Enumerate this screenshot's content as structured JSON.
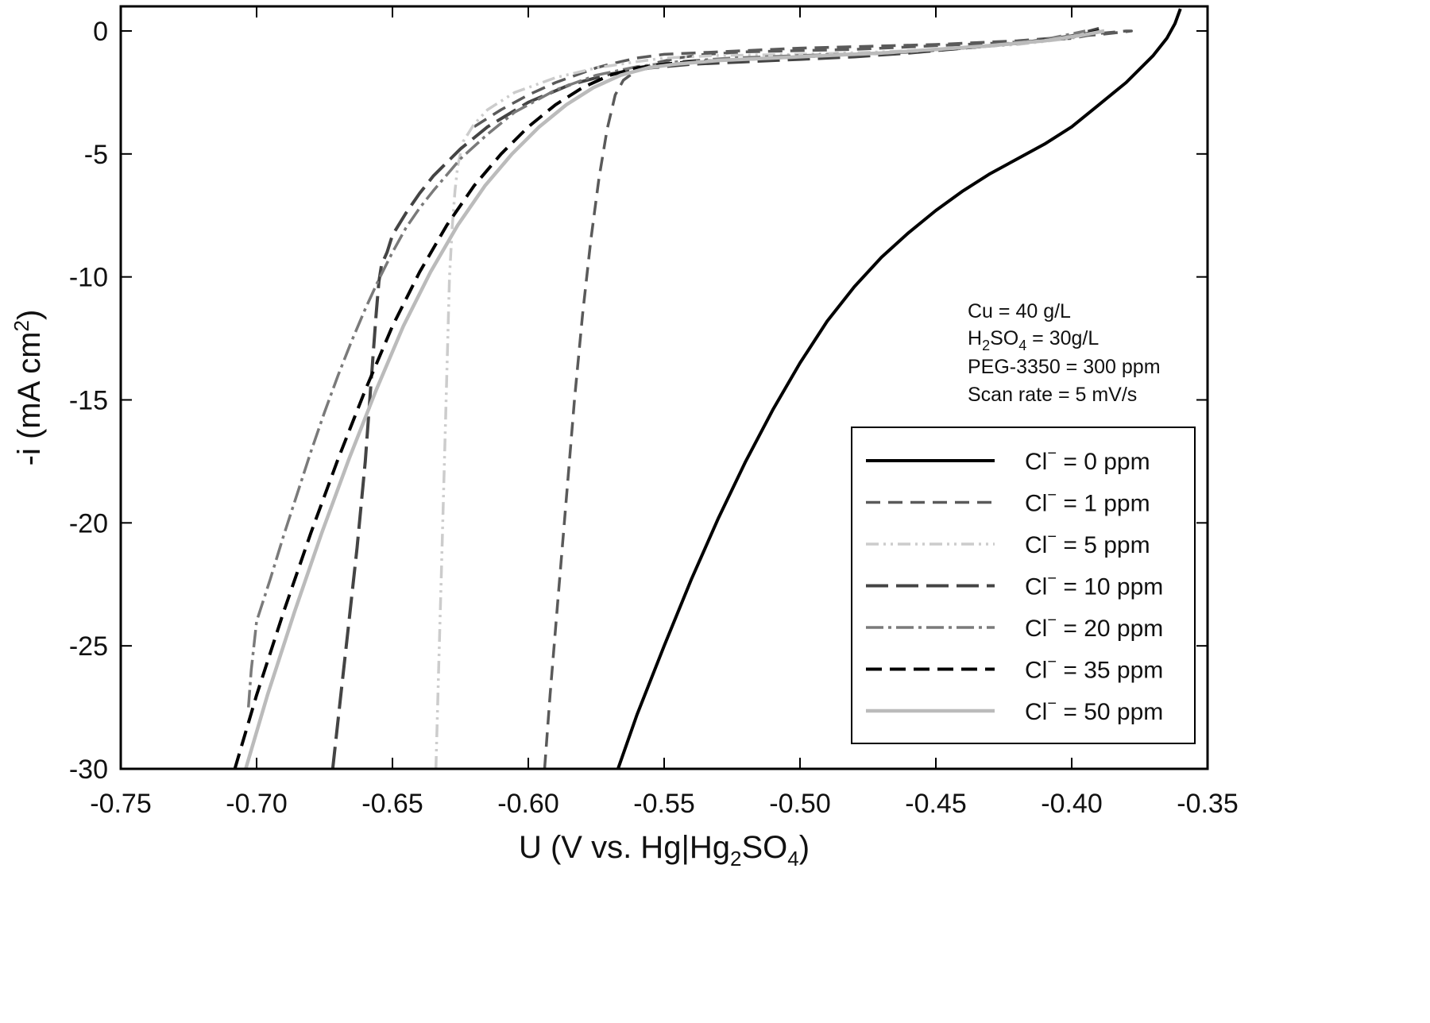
{
  "chart_data": {
    "type": "line",
    "xlabel": "U (V vs. Hg|Hg2SO4)",
    "xlabel_parts": {
      "a": "U (V vs. Hg|Hg",
      "sub1": "2",
      "b": "SO",
      "sub2": "4",
      "c": ")"
    },
    "ylabel": "-i (mA cm2)",
    "ylabel_parts": {
      "a": "-i (mA cm",
      "sup": "2",
      "b": ")"
    },
    "xlim": [
      -0.75,
      -0.35
    ],
    "ylim": [
      -30,
      1
    ],
    "xticks": [
      "-0.75",
      "-0.70",
      "-0.65",
      "-0.60",
      "-0.55",
      "-0.50",
      "-0.45",
      "-0.40",
      "-0.35"
    ],
    "yticks": [
      "0",
      "-5",
      "-10",
      "-15",
      "-20",
      "-25",
      "-30"
    ],
    "grid": false,
    "legend_position": "bottom-right",
    "annotation": {
      "line1": "Cu = 40 g/L",
      "line2": {
        "a": "H",
        "sub1": "2",
        "b": "SO",
        "sub2": "4",
        "c": " = 30g/L"
      },
      "line3": "PEG-3350 = 300 ppm",
      "line4": "Scan rate = 5 mV/s"
    },
    "series": [
      {
        "name": "Cl⁻ = 0 ppm",
        "legend_prefix": "Cl",
        "legend_sup": "−",
        "legend_suffix": " = 0 ppm",
        "color": "#000000",
        "dash": "",
        "width": 4,
        "x": [
          -0.567,
          -0.56,
          -0.55,
          -0.54,
          -0.53,
          -0.52,
          -0.51,
          -0.5,
          -0.49,
          -0.48,
          -0.47,
          -0.46,
          -0.45,
          -0.44,
          -0.43,
          -0.42,
          -0.41,
          -0.4,
          -0.39,
          -0.38,
          -0.37,
          -0.365,
          -0.362,
          -0.36
        ],
        "y": [
          -30,
          -27.8,
          -25.0,
          -22.3,
          -19.8,
          -17.5,
          -15.4,
          -13.5,
          -11.8,
          -10.4,
          -9.2,
          -8.2,
          -7.3,
          -6.5,
          -5.8,
          -5.2,
          -4.6,
          -3.9,
          -3.0,
          -2.1,
          -1.0,
          -0.3,
          0.3,
          0.9
        ]
      },
      {
        "name": "Cl⁻ = 1 ppm",
        "legend_prefix": "Cl",
        "legend_sup": "−",
        "legend_suffix": " = 1 ppm",
        "color": "#5a5a5a",
        "dash": "18 10",
        "width": 3.5,
        "x": [
          -0.594,
          -0.592,
          -0.589,
          -0.586,
          -0.583,
          -0.58,
          -0.577,
          -0.574,
          -0.571,
          -0.568,
          -0.565,
          -0.56,
          -0.553,
          -0.545,
          -0.535,
          -0.52,
          -0.5,
          -0.48,
          -0.46,
          -0.44,
          -0.42,
          -0.4,
          -0.39,
          -0.38,
          -0.378,
          -0.39,
          -0.42,
          -0.45,
          -0.5,
          -0.55,
          -0.56,
          -0.57,
          -0.575,
          -0.58,
          -0.59,
          -0.6,
          -0.61,
          -0.62
        ],
        "y": [
          -30,
          -27,
          -23,
          -19,
          -15,
          -11.5,
          -8.5,
          -6,
          -4,
          -2.6,
          -2.0,
          -1.6,
          -1.3,
          -1.1,
          -0.95,
          -0.85,
          -0.8,
          -0.75,
          -0.65,
          -0.55,
          -0.45,
          -0.3,
          -0.1,
          0.0,
          0.0,
          -0.15,
          -0.4,
          -0.55,
          -0.7,
          -0.95,
          -1.1,
          -1.35,
          -1.5,
          -1.7,
          -2.1,
          -2.6,
          -3.2,
          -3.9
        ]
      },
      {
        "name": "Cl⁻ = 5 ppm",
        "legend_prefix": "Cl",
        "legend_sup": "−",
        "legend_suffix": " = 5 ppm",
        "color": "#cccccc",
        "dash": "16 6 3 6 3 6",
        "width": 3.5,
        "x": [
          -0.634,
          -0.633,
          -0.632,
          -0.631,
          -0.63,
          -0.629,
          -0.628,
          -0.627,
          -0.626,
          -0.624,
          -0.62,
          -0.615,
          -0.605,
          -0.59,
          -0.575,
          -0.56,
          -0.55,
          -0.53,
          -0.5,
          -0.47,
          -0.44,
          -0.42,
          -0.4,
          -0.39
        ],
        "y": [
          -30,
          -26,
          -22,
          -18,
          -14,
          -10,
          -8,
          -6.5,
          -5.5,
          -4.5,
          -3.8,
          -3.2,
          -2.5,
          -1.9,
          -1.5,
          -1.25,
          -1.1,
          -1.0,
          -0.95,
          -0.85,
          -0.7,
          -0.55,
          -0.3,
          0.0
        ]
      },
      {
        "name": "Cl⁻ = 10 ppm",
        "legend_prefix": "Cl",
        "legend_sup": "−",
        "legend_suffix": " = 10 ppm",
        "color": "#444444",
        "dash": "28 10",
        "width": 4,
        "x": [
          -0.672,
          -0.669,
          -0.666,
          -0.663,
          -0.66,
          -0.658,
          -0.656,
          -0.655,
          -0.654,
          -0.652,
          -0.65,
          -0.645,
          -0.64,
          -0.635,
          -0.625,
          -0.615,
          -0.6,
          -0.585,
          -0.57,
          -0.555,
          -0.54,
          -0.52,
          -0.5,
          -0.48,
          -0.46,
          -0.44,
          -0.42,
          -0.4,
          -0.39
        ],
        "y": [
          -30,
          -27,
          -24,
          -21,
          -17.5,
          -14.5,
          -11.5,
          -10.2,
          -9.5,
          -9.0,
          -8.3,
          -7.4,
          -6.6,
          -5.9,
          -4.8,
          -3.9,
          -2.9,
          -2.2,
          -1.75,
          -1.5,
          -1.35,
          -1.25,
          -1.15,
          -1.05,
          -0.9,
          -0.7,
          -0.5,
          -0.2,
          0.1
        ]
      },
      {
        "name": "Cl⁻ = 20 ppm",
        "legend_prefix": "Cl",
        "legend_sup": "−",
        "legend_suffix": " = 20 ppm",
        "color": "#7a7a7a",
        "dash": "22 6 4 6",
        "width": 3.5,
        "x": [
          -0.703,
          -0.702,
          -0.7,
          -0.695,
          -0.69,
          -0.685,
          -0.68,
          -0.675,
          -0.67,
          -0.665,
          -0.66,
          -0.655,
          -0.65,
          -0.645,
          -0.64,
          -0.635,
          -0.625,
          -0.615,
          -0.605,
          -0.59,
          -0.575,
          -0.56,
          -0.545,
          -0.525,
          -0.5,
          -0.47,
          -0.44,
          -0.41,
          -0.395
        ],
        "y": [
          -27.5,
          -26,
          -24,
          -22.3,
          -20.5,
          -18.8,
          -17.1,
          -15.5,
          -14.0,
          -12.6,
          -11.3,
          -10.1,
          -9.0,
          -8.0,
          -7.2,
          -6.5,
          -5.2,
          -4.2,
          -3.3,
          -2.4,
          -1.8,
          -1.45,
          -1.25,
          -1.1,
          -1.0,
          -0.9,
          -0.7,
          -0.35,
          0.0
        ]
      },
      {
        "name": "Cl⁻ = 35 ppm",
        "legend_prefix": "Cl",
        "legend_sup": "−",
        "legend_suffix": " = 35 ppm",
        "color": "#000000",
        "dash": "20 10",
        "width": 4,
        "x": [
          -0.708,
          -0.7,
          -0.69,
          -0.68,
          -0.67,
          -0.66,
          -0.65,
          -0.64,
          -0.63,
          -0.62,
          -0.61,
          -0.6,
          -0.59,
          -0.58,
          -0.57,
          -0.56,
          -0.55,
          -0.54,
          -0.52,
          -0.5,
          -0.48,
          -0.46,
          -0.44,
          -0.42,
          -0.4,
          -0.39
        ],
        "y": [
          -30,
          -27.0,
          -23.6,
          -20.4,
          -17.4,
          -14.6,
          -12.0,
          -9.8,
          -7.9,
          -6.3,
          -5.0,
          -3.9,
          -3.0,
          -2.3,
          -1.8,
          -1.5,
          -1.35,
          -1.25,
          -1.15,
          -1.05,
          -0.95,
          -0.85,
          -0.7,
          -0.5,
          -0.25,
          0.0
        ]
      },
      {
        "name": "Cl⁻ = 50 ppm",
        "legend_prefix": "Cl",
        "legend_sup": "−",
        "legend_suffix": " = 50 ppm",
        "color": "#bbbbbb",
        "dash": "",
        "width": 4.5,
        "x": [
          -0.704,
          -0.696,
          -0.686,
          -0.676,
          -0.666,
          -0.656,
          -0.646,
          -0.636,
          -0.626,
          -0.616,
          -0.606,
          -0.596,
          -0.586,
          -0.576,
          -0.566,
          -0.556,
          -0.546,
          -0.53,
          -0.51,
          -0.49,
          -0.47,
          -0.45,
          -0.43,
          -0.41,
          -0.395,
          -0.388
        ],
        "y": [
          -30,
          -27.0,
          -23.6,
          -20.4,
          -17.4,
          -14.6,
          -12.0,
          -9.8,
          -7.9,
          -6.3,
          -5.0,
          -3.9,
          -3.0,
          -2.3,
          -1.8,
          -1.5,
          -1.35,
          -1.2,
          -1.1,
          -1.0,
          -0.9,
          -0.75,
          -0.6,
          -0.4,
          -0.15,
          0.0
        ]
      }
    ]
  }
}
